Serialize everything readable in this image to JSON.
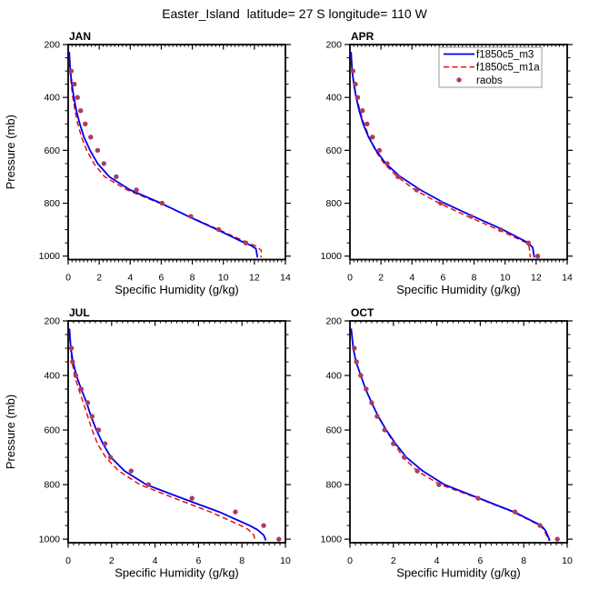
{
  "title": "Easter_Island  latitude= 27 S longitude= 110 W",
  "axis": {
    "xlabel": "Specific Humidity (g/kg)",
    "ylabel": "Pressure (mb)"
  },
  "legend": {
    "entries": [
      {
        "key": "m3",
        "label": "f1850c5_m3",
        "color": "#0000ee",
        "style": "solid"
      },
      {
        "key": "m1a",
        "label": "f1850c5_m1a",
        "color": "#ee0000",
        "style": "dashed"
      },
      {
        "key": "raobs",
        "label": "raobs",
        "color": "#a83d5f",
        "style": "dot"
      }
    ]
  },
  "chart_data": [
    {
      "type": "line",
      "title": "JAN",
      "xlabel": "Specific Humidity (g/kg)",
      "ylabel": "Pressure (mb)",
      "xlim": [
        0,
        14
      ],
      "xticks": [
        0,
        2,
        4,
        6,
        8,
        10,
        12,
        14
      ],
      "x_minor_step": 0.25,
      "ylim": [
        200,
        1013
      ],
      "yticks": [
        200,
        400,
        600,
        800,
        1000
      ],
      "y_minor_step": 50,
      "y_inverted": true,
      "grid": false,
      "show_legend": false,
      "series": {
        "m3": [
          [
            0.07,
            228
          ],
          [
            0.1,
            260
          ],
          [
            0.14,
            300
          ],
          [
            0.24,
            350
          ],
          [
            0.37,
            400
          ],
          [
            0.53,
            450
          ],
          [
            0.75,
            500
          ],
          [
            1.02,
            550
          ],
          [
            1.41,
            600
          ],
          [
            1.9,
            650
          ],
          [
            2.65,
            700
          ],
          [
            4.0,
            750
          ],
          [
            5.98,
            800
          ],
          [
            7.75,
            850
          ],
          [
            9.6,
            900
          ],
          [
            11.37,
            950
          ],
          [
            11.8,
            960
          ],
          [
            12.1,
            972
          ],
          [
            12.2,
            1005
          ]
        ],
        "m1a": [
          [
            0.06,
            230
          ],
          [
            0.12,
            300
          ],
          [
            0.2,
            350
          ],
          [
            0.3,
            400
          ],
          [
            0.44,
            450
          ],
          [
            0.62,
            500
          ],
          [
            0.86,
            550
          ],
          [
            1.2,
            600
          ],
          [
            1.66,
            650
          ],
          [
            2.35,
            700
          ],
          [
            3.8,
            750
          ],
          [
            5.9,
            800
          ],
          [
            7.8,
            850
          ],
          [
            9.7,
            900
          ],
          [
            11.6,
            950
          ],
          [
            12.1,
            962
          ],
          [
            12.45,
            978
          ],
          [
            12.42,
            1005
          ]
        ],
        "raobs": [
          [
            0.2,
            300
          ],
          [
            0.4,
            350
          ],
          [
            0.6,
            400
          ],
          [
            0.8,
            450
          ],
          [
            1.1,
            500
          ],
          [
            1.45,
            550
          ],
          [
            1.9,
            600
          ],
          [
            2.3,
            650
          ],
          [
            3.1,
            700
          ],
          [
            4.4,
            750
          ],
          [
            6.05,
            800
          ],
          [
            7.9,
            850
          ],
          [
            9.7,
            900
          ],
          [
            11.45,
            950
          ]
        ]
      }
    },
    {
      "type": "line",
      "title": "APR",
      "xlabel": "Specific Humidity (g/kg)",
      "ylabel": "Pressure (mb)",
      "xlim": [
        0,
        14
      ],
      "xticks": [
        0,
        2,
        4,
        6,
        8,
        10,
        12,
        14
      ],
      "x_minor_step": 0.25,
      "ylim": [
        200,
        1013
      ],
      "yticks": [
        200,
        400,
        600,
        800,
        1000
      ],
      "y_minor_step": 50,
      "y_inverted": true,
      "grid": false,
      "show_legend": true,
      "series": {
        "m3": [
          [
            0.07,
            228
          ],
          [
            0.14,
            300
          ],
          [
            0.25,
            350
          ],
          [
            0.4,
            400
          ],
          [
            0.6,
            450
          ],
          [
            0.85,
            500
          ],
          [
            1.2,
            550
          ],
          [
            1.68,
            600
          ],
          [
            2.3,
            650
          ],
          [
            3.25,
            700
          ],
          [
            4.55,
            750
          ],
          [
            6.1,
            800
          ],
          [
            7.95,
            850
          ],
          [
            9.85,
            900
          ],
          [
            11.49,
            950
          ],
          [
            11.78,
            968
          ],
          [
            11.88,
            1005
          ]
        ],
        "m1a": [
          [
            0.07,
            230
          ],
          [
            0.15,
            300
          ],
          [
            0.27,
            350
          ],
          [
            0.43,
            400
          ],
          [
            0.65,
            450
          ],
          [
            0.9,
            500
          ],
          [
            1.25,
            550
          ],
          [
            1.62,
            600
          ],
          [
            2.2,
            650
          ],
          [
            3.05,
            700
          ],
          [
            4.2,
            750
          ],
          [
            5.75,
            800
          ],
          [
            7.6,
            850
          ],
          [
            9.55,
            900
          ],
          [
            11.4,
            950
          ],
          [
            11.55,
            965
          ],
          [
            11.63,
            1005
          ]
        ],
        "raobs": [
          [
            0.2,
            300
          ],
          [
            0.35,
            350
          ],
          [
            0.5,
            400
          ],
          [
            0.8,
            450
          ],
          [
            1.1,
            500
          ],
          [
            1.45,
            550
          ],
          [
            1.9,
            600
          ],
          [
            2.4,
            650
          ],
          [
            3.1,
            700
          ],
          [
            4.3,
            750
          ],
          [
            5.85,
            800
          ],
          [
            7.8,
            850
          ],
          [
            9.7,
            900
          ],
          [
            11.5,
            950
          ],
          [
            12.1,
            1000
          ]
        ]
      }
    },
    {
      "type": "line",
      "title": "JUL",
      "xlabel": "Specific Humidity (g/kg)",
      "ylabel": "Pressure (mb)",
      "xlim": [
        0,
        10
      ],
      "xticks": [
        0,
        2,
        4,
        6,
        8,
        10
      ],
      "x_minor_step": 0.25,
      "ylim": [
        200,
        1013
      ],
      "yticks": [
        200,
        400,
        600,
        800,
        1000
      ],
      "y_minor_step": 50,
      "y_inverted": true,
      "grid": false,
      "show_legend": false,
      "series": {
        "m3": [
          [
            0.06,
            228
          ],
          [
            0.12,
            300
          ],
          [
            0.22,
            350
          ],
          [
            0.38,
            400
          ],
          [
            0.6,
            450
          ],
          [
            0.85,
            500
          ],
          [
            1.05,
            550
          ],
          [
            1.3,
            600
          ],
          [
            1.6,
            650
          ],
          [
            1.97,
            700
          ],
          [
            2.6,
            750
          ],
          [
            3.6,
            800
          ],
          [
            5.25,
            850
          ],
          [
            6.95,
            900
          ],
          [
            8.35,
            950
          ],
          [
            8.7,
            965
          ],
          [
            9.0,
            985
          ],
          [
            9.1,
            1005
          ]
        ],
        "m1a": [
          [
            0.05,
            230
          ],
          [
            0.1,
            300
          ],
          [
            0.18,
            350
          ],
          [
            0.3,
            400
          ],
          [
            0.48,
            450
          ],
          [
            0.7,
            500
          ],
          [
            0.9,
            550
          ],
          [
            1.1,
            600
          ],
          [
            1.35,
            650
          ],
          [
            1.73,
            700
          ],
          [
            2.33,
            750
          ],
          [
            3.3,
            800
          ],
          [
            4.9,
            850
          ],
          [
            6.55,
            900
          ],
          [
            7.95,
            950
          ],
          [
            8.3,
            965
          ],
          [
            8.55,
            985
          ],
          [
            8.6,
            1005
          ]
        ],
        "raobs": [
          [
            0.15,
            300
          ],
          [
            0.2,
            350
          ],
          [
            0.35,
            400
          ],
          [
            0.6,
            450
          ],
          [
            0.9,
            500
          ],
          [
            1.1,
            550
          ],
          [
            1.4,
            600
          ],
          [
            1.7,
            650
          ],
          [
            1.95,
            700
          ],
          [
            2.9,
            750
          ],
          [
            3.7,
            800
          ],
          [
            5.7,
            850
          ],
          [
            7.7,
            900
          ],
          [
            9.0,
            950
          ],
          [
            9.7,
            1000
          ]
        ]
      }
    },
    {
      "type": "line",
      "title": "OCT",
      "xlabel": "Specific Humidity (g/kg)",
      "ylabel": "Pressure (mb)",
      "xlim": [
        0,
        10
      ],
      "xticks": [
        0,
        2,
        4,
        6,
        8,
        10
      ],
      "x_minor_step": 0.25,
      "ylim": [
        200,
        1013
      ],
      "yticks": [
        200,
        400,
        600,
        800,
        1000
      ],
      "y_minor_step": 50,
      "y_inverted": true,
      "grid": false,
      "show_legend": false,
      "series": {
        "m3": [
          [
            0.06,
            228
          ],
          [
            0.15,
            300
          ],
          [
            0.28,
            350
          ],
          [
            0.5,
            400
          ],
          [
            0.72,
            450
          ],
          [
            1.0,
            500
          ],
          [
            1.3,
            550
          ],
          [
            1.67,
            600
          ],
          [
            2.1,
            650
          ],
          [
            2.6,
            700
          ],
          [
            3.35,
            750
          ],
          [
            4.35,
            800
          ],
          [
            5.95,
            850
          ],
          [
            7.55,
            900
          ],
          [
            8.8,
            950
          ],
          [
            9.0,
            968
          ],
          [
            9.2,
            1005
          ]
        ],
        "m1a": [
          [
            0.06,
            230
          ],
          [
            0.15,
            300
          ],
          [
            0.28,
            350
          ],
          [
            0.5,
            400
          ],
          [
            0.73,
            450
          ],
          [
            1.0,
            500
          ],
          [
            1.3,
            550
          ],
          [
            1.65,
            600
          ],
          [
            2.05,
            650
          ],
          [
            2.45,
            700
          ],
          [
            3.1,
            750
          ],
          [
            4.15,
            800
          ],
          [
            5.9,
            850
          ],
          [
            7.5,
            900
          ],
          [
            8.75,
            950
          ],
          [
            8.95,
            968
          ],
          [
            9.15,
            1005
          ]
        ],
        "raobs": [
          [
            0.2,
            300
          ],
          [
            0.3,
            350
          ],
          [
            0.5,
            400
          ],
          [
            0.75,
            450
          ],
          [
            1.0,
            500
          ],
          [
            1.25,
            550
          ],
          [
            1.6,
            600
          ],
          [
            2.0,
            650
          ],
          [
            2.5,
            700
          ],
          [
            3.1,
            750
          ],
          [
            4.1,
            800
          ],
          [
            5.9,
            850
          ],
          [
            7.6,
            900
          ],
          [
            8.75,
            950
          ],
          [
            9.55,
            1000
          ]
        ]
      }
    }
  ]
}
